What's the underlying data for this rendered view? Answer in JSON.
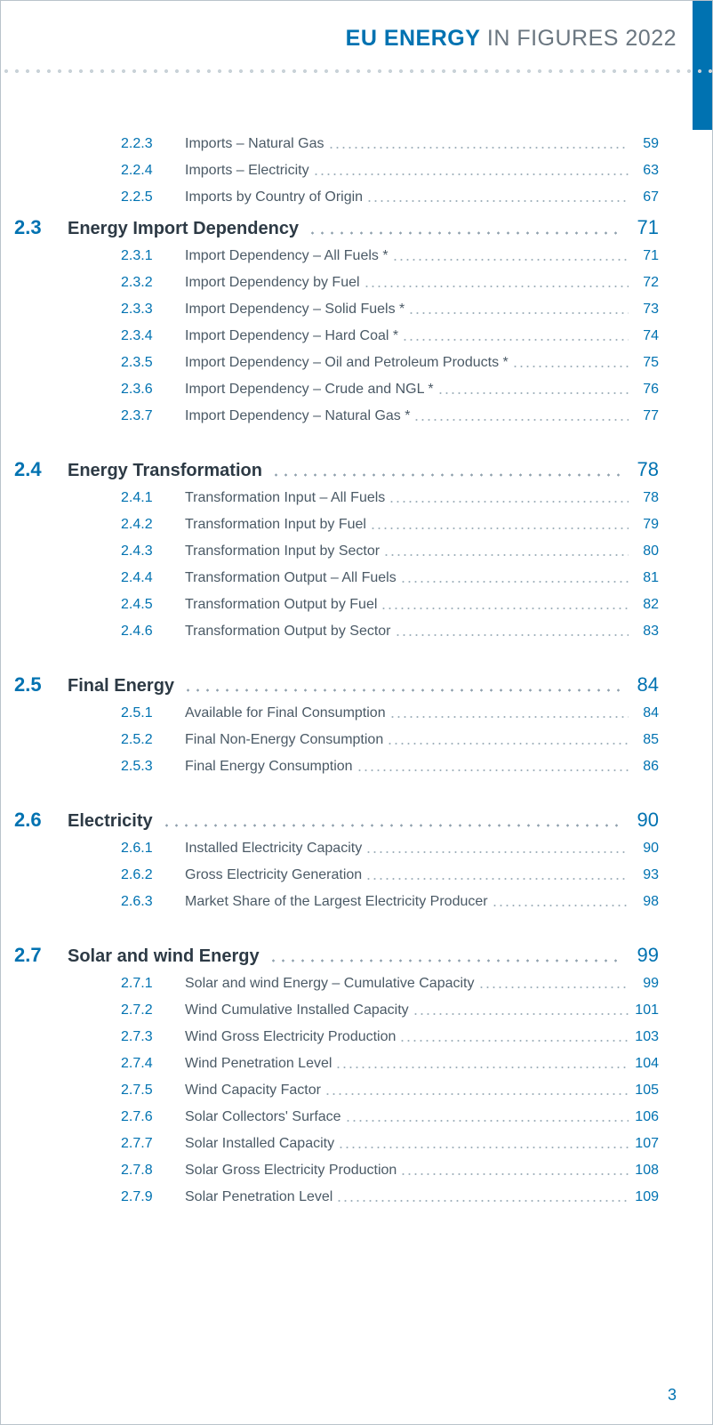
{
  "colors": {
    "accent": "#0072b1",
    "text_body": "#4b5a66",
    "text_heading": "#2d3a45",
    "text_header_light": "#6a7680",
    "dot_light": "#c9d2d8",
    "dot_leader_small": "#9fb0bb",
    "dot_leader_big": "#8fa0ad",
    "border": "#b9c3cb",
    "background": "#ffffff"
  },
  "typography": {
    "header_fontsize": 25,
    "section_fontsize": 20,
    "section_num_fontsize": 22,
    "sub_fontsize": 16,
    "footer_fontsize": 18
  },
  "header": {
    "bold": "EU ENERGY",
    "light": " IN FIGURES 2022"
  },
  "footer_page": "3",
  "toc": {
    "continuation": [
      {
        "num": "2.2.3",
        "title": "Imports – Natural Gas",
        "page": "59"
      },
      {
        "num": "2.2.4",
        "title": "Imports – Electricity",
        "page": "63"
      },
      {
        "num": "2.2.5",
        "title": "Imports by Country of Origin",
        "page": "67"
      }
    ],
    "sections": [
      {
        "num": "2.3",
        "title": "Energy Import Dependency",
        "page": "71",
        "items": [
          {
            "num": "2.3.1",
            "title": "Import Dependency – All Fuels *",
            "page": "71"
          },
          {
            "num": "2.3.2",
            "title": "Import Dependency by Fuel",
            "page": "72"
          },
          {
            "num": "2.3.3",
            "title": "Import Dependency – Solid Fuels *",
            "page": "73"
          },
          {
            "num": "2.3.4",
            "title": "Import Dependency – Hard Coal *",
            "page": "74"
          },
          {
            "num": "2.3.5",
            "title": "Import Dependency – Oil and Petroleum Products *",
            "page": "75"
          },
          {
            "num": "2.3.6",
            "title": "Import Dependency – Crude and NGL *",
            "page": "76"
          },
          {
            "num": "2.3.7",
            "title": "Import Dependency – Natural Gas *",
            "page": "77"
          }
        ]
      },
      {
        "num": "2.4",
        "title": "Energy Transformation",
        "page": "78",
        "items": [
          {
            "num": "2.4.1",
            "title": "Transformation Input – All Fuels",
            "page": "78"
          },
          {
            "num": "2.4.2",
            "title": "Transformation Input by Fuel",
            "page": "79"
          },
          {
            "num": "2.4.3",
            "title": "Transformation Input by Sector",
            "page": "80"
          },
          {
            "num": "2.4.4",
            "title": "Transformation Output – All Fuels",
            "page": "81"
          },
          {
            "num": "2.4.5",
            "title": "Transformation Output by Fuel",
            "page": "82"
          },
          {
            "num": "2.4.6",
            "title": "Transformation Output by Sector",
            "page": "83"
          }
        ]
      },
      {
        "num": "2.5",
        "title": "Final Energy",
        "page": "84",
        "items": [
          {
            "num": "2.5.1",
            "title": "Available for Final Consumption",
            "page": "84"
          },
          {
            "num": "2.5.2",
            "title": "Final Non-Energy Consumption",
            "page": "85"
          },
          {
            "num": "2.5.3",
            "title": "Final Energy Consumption",
            "page": "86"
          }
        ]
      },
      {
        "num": "2.6",
        "title": "Electricity",
        "page": "90",
        "items": [
          {
            "num": "2.6.1",
            "title": "Installed Electricity Capacity",
            "page": "90"
          },
          {
            "num": "2.6.2",
            "title": "Gross Electricity Generation",
            "page": "93"
          },
          {
            "num": "2.6.3",
            "title": "Market Share of the Largest Electricity Producer",
            "page": "98"
          }
        ]
      },
      {
        "num": "2.7",
        "title": "Solar and wind Energy",
        "page": "99",
        "items": [
          {
            "num": "2.7.1",
            "title": "Solar and wind Energy – Cumulative Capacity",
            "page": "99"
          },
          {
            "num": "2.7.2",
            "title": "Wind Cumulative Installed Capacity",
            "page": "101"
          },
          {
            "num": "2.7.3",
            "title": "Wind Gross Electricity Production",
            "page": "103"
          },
          {
            "num": "2.7.4",
            "title": "Wind Penetration Level",
            "page": "104"
          },
          {
            "num": "2.7.5",
            "title": "Wind Capacity Factor",
            "page": "105"
          },
          {
            "num": "2.7.6",
            "title": "Solar Collectors' Surface",
            "page": "106"
          },
          {
            "num": "2.7.7",
            "title": "Solar Installed Capacity",
            "page": "107"
          },
          {
            "num": "2.7.8",
            "title": "Solar Gross Electricity Production",
            "page": "108"
          },
          {
            "num": "2.7.9",
            "title": "Solar Penetration Level",
            "page": "109"
          }
        ]
      }
    ]
  }
}
